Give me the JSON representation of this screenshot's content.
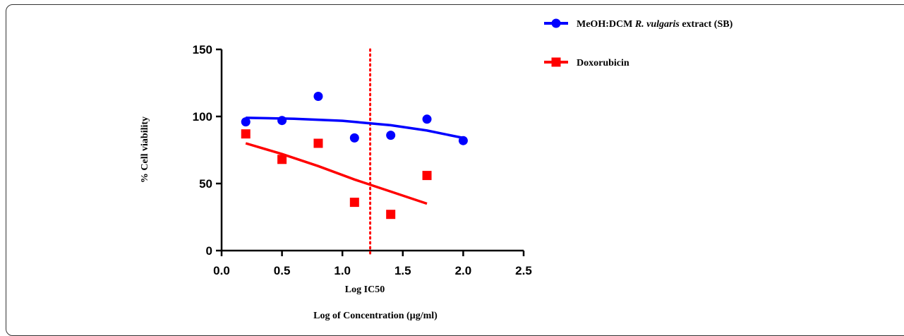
{
  "chart_data": {
    "type": "scatter",
    "ylabel": "% Cell viability",
    "xlabel": "Log of Concentration (µg/ml)",
    "annotation": "Log IC50",
    "xlim": [
      0,
      2.5
    ],
    "ylim": [
      0,
      150
    ],
    "x_ticks": [
      "0.0",
      "0.5",
      "1.0",
      "1.5",
      "2.0",
      "2.5"
    ],
    "y_ticks": [
      "0",
      "50",
      "100",
      "150"
    ],
    "ic50_line_x": 1.23,
    "legend_position": "top-right",
    "series": [
      {
        "name_parts": [
          "MeOH:DCM ",
          "R. vulgaris",
          " extract (SB)"
        ],
        "name": "MeOH:DCM R. vulgaris extract (SB)",
        "color": "#0000ff",
        "marker": "circle",
        "x": [
          0.2,
          0.5,
          0.8,
          1.1,
          1.4,
          1.7,
          2.0
        ],
        "y": [
          96,
          97,
          115,
          84,
          86,
          98,
          82
        ],
        "fit_x": [
          0.2,
          0.6,
          1.0,
          1.4,
          1.7,
          2.0
        ],
        "fit_y": [
          99,
          98.3,
          96.8,
          93.5,
          89.5,
          84
        ]
      },
      {
        "name_parts": [
          "Doxorubicin"
        ],
        "name": "Doxorubicin",
        "color": "#ff0000",
        "marker": "square",
        "x": [
          0.2,
          0.5,
          0.8,
          1.1,
          1.4,
          1.7
        ],
        "y": [
          87,
          68,
          80,
          36,
          27,
          56
        ],
        "fit_x": [
          0.2,
          0.5,
          0.8,
          1.1,
          1.4,
          1.7
        ],
        "fit_y": [
          80,
          72,
          63,
          53,
          44,
          35
        ]
      }
    ]
  }
}
